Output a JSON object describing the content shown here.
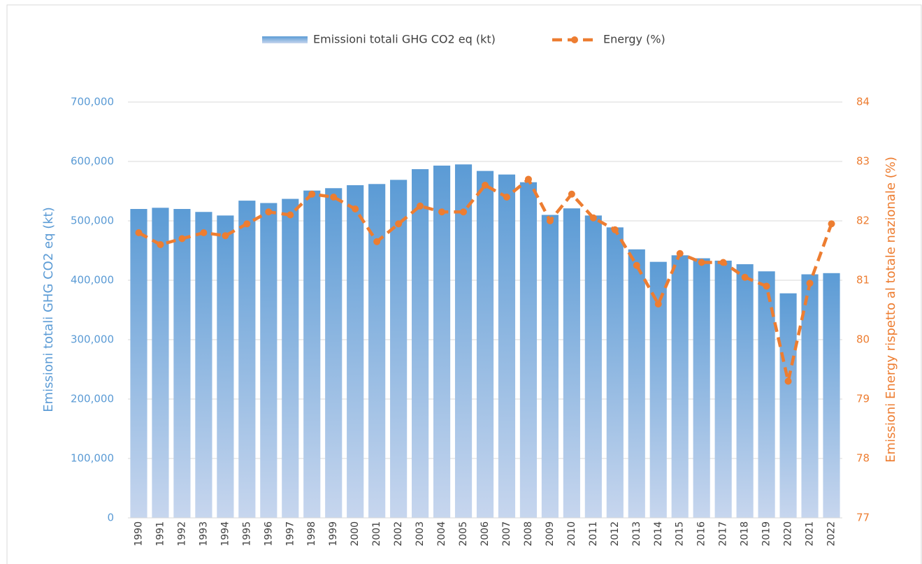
{
  "chart_data": {
    "type": "bar-line",
    "categories": [
      "1990",
      "1991",
      "1992",
      "1993",
      "1994",
      "1995",
      "1996",
      "1997",
      "1998",
      "1999",
      "2000",
      "2001",
      "2002",
      "2003",
      "2004",
      "2005",
      "2006",
      "2007",
      "2008",
      "2009",
      "2010",
      "2011",
      "2012",
      "2013",
      "2014",
      "2015",
      "2016",
      "2017",
      "2018",
      "2019",
      "2020",
      "2021",
      "2022"
    ],
    "series": [
      {
        "name": "Emissioni totali GHG CO2 eq (kt)",
        "type": "bar",
        "color": "#5b9bd5",
        "values": [
          520000,
          522000,
          520000,
          515000,
          509000,
          534000,
          530000,
          537000,
          551000,
          555000,
          560000,
          562000,
          569000,
          587000,
          593000,
          595000,
          584000,
          578000,
          565000,
          510000,
          521000,
          509000,
          489000,
          452000,
          431000,
          442000,
          437000,
          433000,
          427000,
          415000,
          378000,
          410000,
          412000
        ]
      },
      {
        "name": "Energy (%)",
        "type": "line",
        "axis": "y2",
        "color": "#ed7d31",
        "values": [
          81.8,
          81.6,
          81.7,
          81.8,
          81.75,
          81.95,
          82.15,
          82.1,
          82.45,
          82.4,
          82.2,
          81.65,
          81.95,
          82.25,
          82.15,
          82.15,
          82.6,
          82.4,
          82.7,
          82.0,
          82.45,
          82.05,
          81.85,
          81.25,
          80.6,
          81.45,
          81.3,
          81.3,
          81.05,
          80.9,
          79.3,
          80.95,
          81.95
        ]
      }
    ],
    "y_label": "Emissioni totali GHG  CO2 eq (kt)",
    "y2_label": "Emissioni Energy rispetto al totale nazionale (%)",
    "ylim": [
      0,
      700000
    ],
    "yticks": [
      0,
      {
        "value": 100000,
        "label": "100,000"
      },
      {
        "value": 200000,
        "label": "200,000"
      },
      {
        "value": 300000,
        "label": "300,000"
      },
      {
        "value": 400000,
        "label": "400,000"
      },
      {
        "value": 500000,
        "label": "500,000"
      },
      {
        "value": 600000,
        "label": "600,000"
      },
      {
        "value": 700000,
        "label": "700,000"
      }
    ],
    "y2lim": [
      77,
      84
    ],
    "y2ticks": [
      77,
      78,
      79,
      80,
      81,
      82,
      83,
      84
    ],
    "grid": true,
    "legend": "top"
  }
}
